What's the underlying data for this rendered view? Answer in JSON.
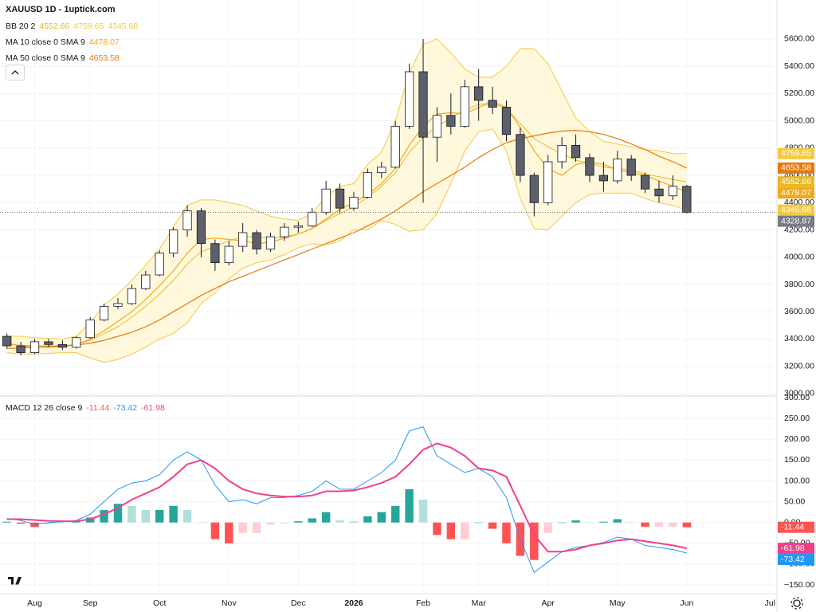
{
  "chart_data": {
    "type": "candlestick",
    "title": "XAUUSD 1D - 1uptick.com",
    "categories": [
      null,
      null,
      "Aug",
      null,
      null,
      null,
      "Sep",
      null,
      null,
      null,
      null,
      "Oct",
      null,
      null,
      null,
      null,
      "Nov",
      null,
      null,
      null,
      null,
      "Dec",
      null,
      null,
      null,
      "2026",
      null,
      null,
      null,
      null,
      "Feb",
      null,
      null,
      null,
      "Mar",
      null,
      null,
      null,
      null,
      "Apr",
      null,
      null,
      null,
      null,
      "May",
      null,
      null,
      null,
      null,
      "Jun",
      null,
      null,
      null,
      null,
      null,
      "Jul"
    ],
    "open": [
      3420,
      3350,
      3300,
      3380,
      3360,
      3340,
      3410,
      3540,
      3640,
      3660,
      3770,
      3870,
      4030,
      4200,
      4340,
      4100,
      3960,
      4080,
      4180,
      4060,
      4150,
      4220,
      4230,
      4330,
      4500,
      4360,
      4440,
      4620,
      4660,
      4960,
      5360,
      4880,
      5040,
      4960,
      5250,
      5150,
      5100,
      4900,
      4600,
      4400,
      4700,
      4820,
      4730,
      4600,
      4560,
      4720,
      4600,
      4500,
      4450,
      4520,
      null,
      null,
      null,
      null,
      null,
      null
    ],
    "high": [
      3440,
      3380,
      3400,
      3400,
      3390,
      3420,
      3560,
      3660,
      3700,
      3800,
      3900,
      4050,
      4220,
      4380,
      4360,
      4130,
      4120,
      4250,
      4200,
      4180,
      4250,
      4260,
      4360,
      4560,
      4540,
      4480,
      4650,
      4700,
      5000,
      5420,
      5600,
      5100,
      5200,
      5300,
      5380,
      5250,
      5150,
      4950,
      4620,
      4750,
      4880,
      4900,
      4760,
      4700,
      4780,
      4750,
      4620,
      4560,
      4600,
      4530,
      null,
      null,
      null,
      null,
      null,
      null
    ],
    "low": [
      3330,
      3280,
      3290,
      3340,
      3320,
      3330,
      3400,
      3530,
      3620,
      3650,
      3760,
      3860,
      4000,
      4150,
      4000,
      3900,
      3940,
      4040,
      4020,
      4040,
      4120,
      4180,
      4220,
      4310,
      4320,
      4340,
      4430,
      4580,
      4650,
      4940,
      4400,
      4700,
      4900,
      4950,
      5000,
      5050,
      4850,
      4550,
      4300,
      4380,
      4650,
      4700,
      4550,
      4480,
      4540,
      4560,
      4470,
      4400,
      4420,
      4320,
      null,
      null,
      null,
      null,
      null,
      null
    ],
    "close": [
      3350,
      3300,
      3380,
      3360,
      3340,
      3410,
      3540,
      3640,
      3660,
      3770,
      3870,
      4030,
      4200,
      4340,
      4100,
      3960,
      4080,
      4180,
      4060,
      4150,
      4220,
      4230,
      4330,
      4500,
      4360,
      4440,
      4620,
      4660,
      4960,
      5360,
      4880,
      5040,
      4960,
      5250,
      5150,
      5100,
      4900,
      4600,
      4400,
      4700,
      4820,
      4730,
      4600,
      4560,
      4720,
      4600,
      4500,
      4450,
      4520,
      4328.87,
      null,
      null,
      null,
      null,
      null,
      null
    ],
    "up_color": "#ffffff",
    "down_color": "#5d606b",
    "last_color": "#787b86",
    "ylim": [
      2982,
      5886
    ],
    "yticks": [
      {
        "value": 3000,
        "label": "3000.00"
      },
      {
        "value": 3200,
        "label": "3200.00"
      },
      {
        "value": 3400,
        "label": "3400.00"
      },
      {
        "value": 3600,
        "label": "3600.00"
      },
      {
        "value": 3800,
        "label": "3800.00"
      },
      {
        "value": 4000,
        "label": "4000.00"
      },
      {
        "value": 4200,
        "label": "4200.00"
      },
      {
        "value": 4400,
        "label": "4400.00"
      },
      {
        "value": 4600,
        "label": "4600.00"
      },
      {
        "value": 4800,
        "label": "4800.00"
      },
      {
        "value": 5000,
        "label": "5000.00"
      },
      {
        "value": 5200,
        "label": "5200.00"
      },
      {
        "value": 5400,
        "label": "5400.00"
      },
      {
        "value": 5600,
        "label": "5600.00"
      }
    ],
    "grid": true,
    "indicators": [
      {
        "name": "BB 20 2",
        "fill": "#fff3c4",
        "series": [
          {
            "color": "#e8b923",
            "values": [
              3360,
              3355,
              3350,
              3350,
              3350,
              3360,
              3390,
              3440,
              3490,
              3560,
              3640,
              3730,
              3830,
              3950,
              4040,
              4080,
              4120,
              4150,
              4150,
              4140,
              4150,
              4170,
              4210,
              4270,
              4320,
              4370,
              4440,
              4520,
              4620,
              4770,
              4880,
              4960,
              5020,
              5080,
              5120,
              5130,
              5090,
              4980,
              4870,
              4810,
              4760,
              4710,
              4690,
              4660,
              4650,
              4640,
              4610,
              4590,
              4570,
              4552.66,
              null,
              null,
              null,
              null,
              null,
              null
            ]
          },
          {
            "color": "#f5c842",
            "values": [
              3420,
              3420,
              3410,
              3405,
              3400,
              3420,
              3520,
              3650,
              3730,
              3830,
              3940,
              4060,
              4220,
              4380,
              4420,
              4420,
              4400,
              4380,
              4340,
              4300,
              4280,
              4270,
              4320,
              4450,
              4520,
              4540,
              4680,
              4770,
              5000,
              5350,
              5560,
              5600,
              5500,
              5380,
              5320,
              5320,
              5400,
              5530,
              5530,
              5420,
              5220,
              5020,
              4920,
              4850,
              4830,
              4810,
              4790,
              4780,
              4760,
              4759.65,
              null,
              null,
              null,
              null,
              null,
              null
            ]
          },
          {
            "color": "#f5c842",
            "values": [
              3300,
              3290,
              3290,
              3295,
              3300,
              3300,
              3260,
              3230,
              3250,
              3290,
              3340,
              3400,
              3440,
              3520,
              3660,
              3740,
              3840,
              3920,
              3960,
              3980,
              4020,
              4070,
              4100,
              4090,
              4120,
              4200,
              4200,
              4270,
              4240,
              4190,
              4200,
              4320,
              4540,
              4780,
              4920,
              4940,
              4780,
              4430,
              4210,
              4200,
              4300,
              4400,
              4460,
              4470,
              4470,
              4470,
              4430,
              4400,
              4380,
              4345.68,
              null,
              null,
              null,
              null,
              null,
              null
            ]
          }
        ]
      },
      {
        "name": "MA 10 close 0 SMA 9",
        "series": [
          {
            "color": "#f0a81c",
            "values": [
              3370,
              3350,
              3340,
              3340,
              3345,
              3360,
              3400,
              3460,
              3530,
              3600,
              3690,
              3790,
              3900,
              4030,
              4130,
              4140,
              4130,
              4120,
              4100,
              4110,
              4140,
              4170,
              4210,
              4280,
              4350,
              4400,
              4460,
              4540,
              4650,
              4820,
              4960,
              5050,
              5060,
              5050,
              5100,
              5140,
              5100,
              4950,
              4780,
              4650,
              4600,
              4680,
              4700,
              4680,
              4640,
              4620,
              4600,
              4560,
              4520,
              4478.07,
              null,
              null,
              null,
              null,
              null,
              null
            ]
          }
        ]
      },
      {
        "name": "MA 50 close 0 SMA 9",
        "series": [
          {
            "color": "#e8780e",
            "values": [
              3330,
              3335,
              3340,
              3345,
              3350,
              3355,
              3370,
              3390,
              3420,
              3450,
              3490,
              3540,
              3600,
              3660,
              3720,
              3770,
              3820,
              3860,
              3900,
              3940,
              3980,
              4020,
              4060,
              4100,
              4140,
              4180,
              4230,
              4280,
              4340,
              4410,
              4480,
              4540,
              4600,
              4660,
              4730,
              4790,
              4840,
              4870,
              4890,
              4910,
              4925,
              4930,
              4920,
              4900,
              4870,
              4830,
              4790,
              4740,
              4700,
              4653.58,
              null,
              null,
              null,
              null,
              null,
              null
            ]
          }
        ]
      }
    ],
    "macd": {
      "name": "MACD 12 26 close 9",
      "ylim": [
        -171,
        302
      ],
      "yticks": [
        {
          "value": -150,
          "label": "−150.00"
        },
        {
          "value": -100,
          "label": "−100.00"
        },
        {
          "value": -50,
          "label": "−50.00"
        },
        {
          "value": 0,
          "label": "0.00"
        },
        {
          "value": 50,
          "label": "50.00"
        },
        {
          "value": 100,
          "label": "100.00"
        },
        {
          "value": 150,
          "label": "150.00"
        },
        {
          "value": 200,
          "label": "200.00"
        },
        {
          "value": 250,
          "label": "250.00"
        },
        {
          "value": 300,
          "label": "300.00"
        }
      ],
      "series": [
        {
          "type": "bar",
          "color": "#ff5252",
          "colors": [
            "#26a69a",
            "#b2dfdb",
            "#ffcdd2",
            "#ff5252"
          ],
          "values": [
            2,
            -3,
            -11,
            -4,
            -1,
            2,
            12,
            30,
            45,
            40,
            30,
            30,
            40,
            30,
            0,
            -40,
            -50,
            -25,
            -25,
            -5,
            -2,
            3,
            10,
            25,
            5,
            3,
            15,
            25,
            40,
            80,
            55,
            -30,
            -40,
            -40,
            0,
            -15,
            -50,
            -80,
            -90,
            -25,
            0,
            5,
            0,
            2,
            8,
            0,
            -10,
            -10,
            -10,
            -11.44,
            null,
            null,
            null,
            null,
            null,
            null
          ]
        },
        {
          "type": "line",
          "color": "#2196f3",
          "values": [
            10,
            5,
            -5,
            0,
            2,
            5,
            20,
            50,
            80,
            95,
            100,
            115,
            150,
            170,
            150,
            90,
            50,
            55,
            45,
            60,
            60,
            65,
            75,
            100,
            80,
            80,
            100,
            120,
            150,
            220,
            230,
            160,
            140,
            120,
            130,
            110,
            60,
            -40,
            -120,
            -95,
            -70,
            -60,
            -55,
            -48,
            -35,
            -40,
            -55,
            -60,
            -65,
            -73.42,
            null,
            null,
            null,
            null,
            null,
            null
          ]
        },
        {
          "type": "line",
          "color": "#f23f8a",
          "values": [
            8,
            8,
            6,
            4,
            3,
            3,
            8,
            20,
            35,
            55,
            70,
            85,
            110,
            140,
            150,
            130,
            100,
            80,
            70,
            65,
            62,
            62,
            65,
            75,
            75,
            77,
            85,
            95,
            110,
            140,
            175,
            190,
            180,
            160,
            130,
            125,
            110,
            40,
            -30,
            -70,
            -70,
            -65,
            -55,
            -50,
            -43,
            -40,
            -45,
            -50,
            -55,
            -61.98,
            null,
            null,
            null,
            null,
            null,
            null
          ]
        }
      ]
    }
  }
}
